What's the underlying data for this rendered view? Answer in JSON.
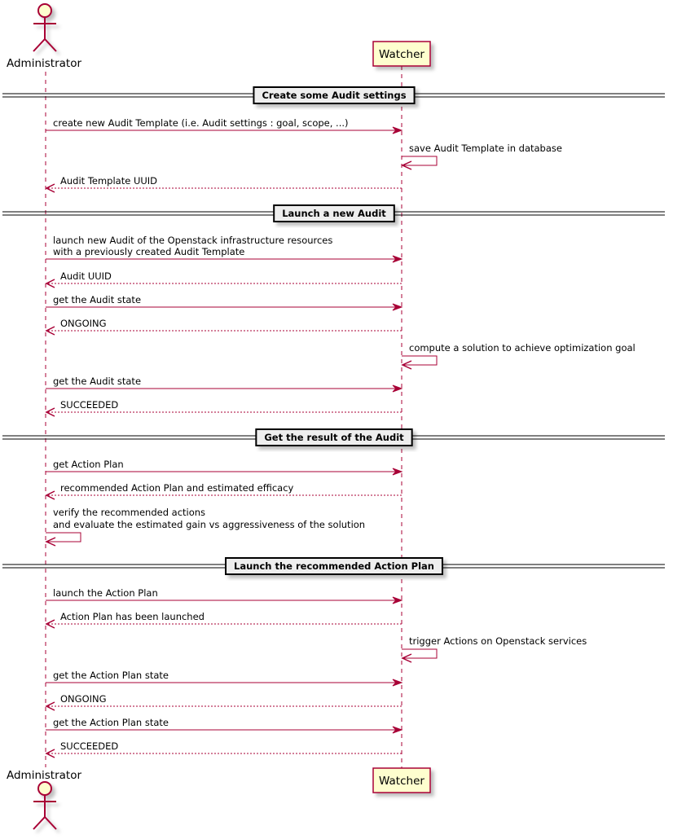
{
  "participants": {
    "actor": "Administrator",
    "system": "Watcher"
  },
  "colors": {
    "line": "#A80036",
    "participant_fill": "#FEFECE",
    "divider_fill": "#EEEEEE"
  },
  "dividers": [
    "Create some Audit settings",
    "Launch a new Audit",
    "Get the result of the Audit",
    "Launch the recommended Action Plan"
  ],
  "messages": [
    {
      "from": "Administrator",
      "to": "Watcher",
      "style": "solid",
      "lines": [
        "create new Audit Template (i.e. Audit settings : goal, scope, ...)"
      ]
    },
    {
      "from": "Watcher",
      "to": "Watcher",
      "style": "solid",
      "lines": [
        "save Audit Template in database"
      ]
    },
    {
      "from": "Watcher",
      "to": "Administrator",
      "style": "dashed",
      "lines": [
        "Audit Template UUID"
      ]
    },
    {
      "from": "Administrator",
      "to": "Watcher",
      "style": "solid",
      "lines": [
        "launch new Audit of the Openstack infrastructure resources",
        "with a previously created Audit Template"
      ]
    },
    {
      "from": "Watcher",
      "to": "Administrator",
      "style": "dashed",
      "lines": [
        "Audit UUID"
      ]
    },
    {
      "from": "Administrator",
      "to": "Watcher",
      "style": "solid",
      "lines": [
        "get the Audit state"
      ]
    },
    {
      "from": "Watcher",
      "to": "Administrator",
      "style": "dashed",
      "lines": [
        "ONGOING"
      ]
    },
    {
      "from": "Watcher",
      "to": "Watcher",
      "style": "solid",
      "lines": [
        "compute a solution to achieve optimization goal"
      ]
    },
    {
      "from": "Administrator",
      "to": "Watcher",
      "style": "solid",
      "lines": [
        "get the Audit state"
      ]
    },
    {
      "from": "Watcher",
      "to": "Administrator",
      "style": "dashed",
      "lines": [
        "SUCCEEDED"
      ]
    },
    {
      "from": "Administrator",
      "to": "Watcher",
      "style": "solid",
      "lines": [
        "get Action Plan"
      ]
    },
    {
      "from": "Watcher",
      "to": "Administrator",
      "style": "dashed",
      "lines": [
        "recommended Action Plan and estimated efficacy"
      ]
    },
    {
      "from": "Administrator",
      "to": "Administrator",
      "style": "solid",
      "lines": [
        "verify the recommended actions",
        "and evaluate the estimated gain vs aggressiveness of the solution"
      ]
    },
    {
      "from": "Administrator",
      "to": "Watcher",
      "style": "solid",
      "lines": [
        "launch the Action Plan"
      ]
    },
    {
      "from": "Watcher",
      "to": "Administrator",
      "style": "dashed",
      "lines": [
        "Action Plan has been launched"
      ]
    },
    {
      "from": "Watcher",
      "to": "Watcher",
      "style": "solid",
      "lines": [
        "trigger Actions on Openstack services"
      ]
    },
    {
      "from": "Administrator",
      "to": "Watcher",
      "style": "solid",
      "lines": [
        "get the Action Plan state"
      ]
    },
    {
      "from": "Watcher",
      "to": "Administrator",
      "style": "dashed",
      "lines": [
        "ONGOING"
      ]
    },
    {
      "from": "Administrator",
      "to": "Watcher",
      "style": "solid",
      "lines": [
        "get the Action Plan state"
      ]
    },
    {
      "from": "Watcher",
      "to": "Administrator",
      "style": "dashed",
      "lines": [
        "SUCCEEDED"
      ]
    }
  ]
}
